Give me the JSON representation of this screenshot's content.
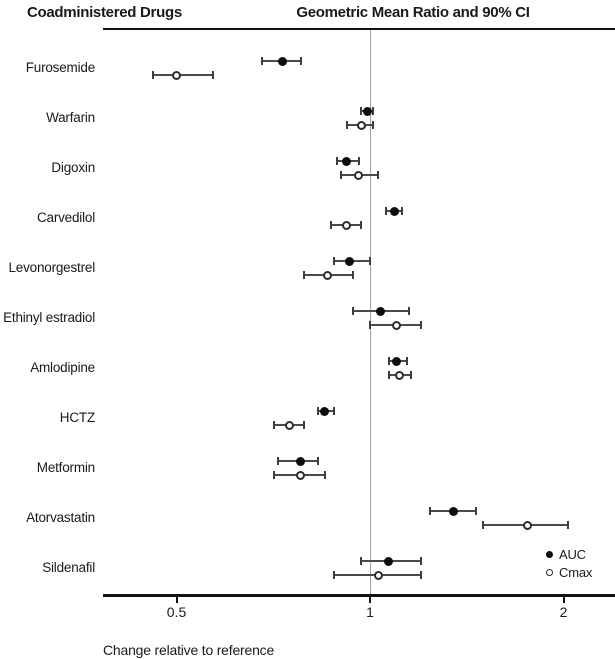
{
  "chart_data": {
    "type": "scatter",
    "subtype": "forest-plot",
    "title_left": "Coadministered Drugs",
    "title_right": "Geometric Mean Ratio and 90% CI",
    "xlabel": "Change relative to reference",
    "x_scale": "log2",
    "x_ticks": [
      0.5,
      1,
      2
    ],
    "x_tick_labels": [
      "0.5",
      "1",
      "2"
    ],
    "x_range": [
      0.42,
      2.2
    ],
    "reference_value": 1,
    "grid": "off",
    "legend_position": "bottom-right",
    "legend": [
      {
        "label": "AUC",
        "marker": "filled-circle"
      },
      {
        "label": "Cmax",
        "marker": "open-circle"
      }
    ],
    "rows": [
      {
        "drug": "Furosemide",
        "auc": {
          "value": 0.73,
          "lo": 0.68,
          "hi": 0.78
        },
        "cmax": {
          "value": 0.5,
          "lo": 0.46,
          "hi": 0.57
        }
      },
      {
        "drug": "Warfarin",
        "auc": {
          "value": 0.99,
          "lo": 0.97,
          "hi": 1.01
        },
        "cmax": {
          "value": 0.97,
          "lo": 0.92,
          "hi": 1.01
        }
      },
      {
        "drug": "Digoxin",
        "auc": {
          "value": 0.92,
          "lo": 0.89,
          "hi": 0.96
        },
        "cmax": {
          "value": 0.96,
          "lo": 0.9,
          "hi": 1.03
        }
      },
      {
        "drug": "Carvedilol",
        "auc": {
          "value": 1.09,
          "lo": 1.06,
          "hi": 1.12
        },
        "cmax": {
          "value": 0.92,
          "lo": 0.87,
          "hi": 0.97
        }
      },
      {
        "drug": "Levonorgestrel",
        "auc": {
          "value": 0.93,
          "lo": 0.88,
          "hi": 1.0
        },
        "cmax": {
          "value": 0.86,
          "lo": 0.79,
          "hi": 0.94
        }
      },
      {
        "drug": "Ethinyl estradiol",
        "auc": {
          "value": 1.04,
          "lo": 0.94,
          "hi": 1.15
        },
        "cmax": {
          "value": 1.1,
          "lo": 1.0,
          "hi": 1.2
        }
      },
      {
        "drug": "Amlodipine",
        "auc": {
          "value": 1.1,
          "lo": 1.07,
          "hi": 1.14
        },
        "cmax": {
          "value": 1.11,
          "lo": 1.07,
          "hi": 1.16
        }
      },
      {
        "drug": "HCTZ",
        "auc": {
          "value": 0.85,
          "lo": 0.83,
          "hi": 0.88
        },
        "cmax": {
          "value": 0.75,
          "lo": 0.71,
          "hi": 0.79
        }
      },
      {
        "drug": "Metformin",
        "auc": {
          "value": 0.78,
          "lo": 0.72,
          "hi": 0.83
        },
        "cmax": {
          "value": 0.78,
          "lo": 0.71,
          "hi": 0.85
        }
      },
      {
        "drug": "Atorvastatin",
        "auc": {
          "value": 1.35,
          "lo": 1.24,
          "hi": 1.46
        },
        "cmax": {
          "value": 1.76,
          "lo": 1.5,
          "hi": 2.03
        }
      },
      {
        "drug": "Sildenafil",
        "auc": {
          "value": 1.07,
          "lo": 0.97,
          "hi": 1.2
        },
        "cmax": {
          "value": 1.03,
          "lo": 0.88,
          "hi": 1.2
        }
      }
    ],
    "colors": {
      "marker": "#0d0d0d",
      "error_bar": "#4a4a4a",
      "reference_line": "#a3a3a3",
      "axis": "#111111",
      "text": "#1a1a1a",
      "background": "#ffffff"
    }
  }
}
